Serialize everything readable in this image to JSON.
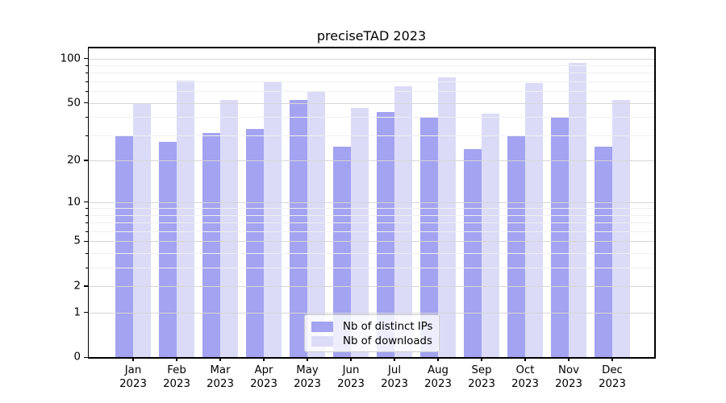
{
  "title": "preciseTAD 2023",
  "chart_data": {
    "type": "bar",
    "title": "preciseTAD 2023",
    "categories": [
      "Jan",
      "Feb",
      "Mar",
      "Apr",
      "May",
      "Jun",
      "Jul",
      "Aug",
      "Sep",
      "Oct",
      "Nov",
      "Dec"
    ],
    "x_tick_second_line": "2023",
    "series": [
      {
        "name": "Nb of distinct IPs",
        "color": "#a3a3f1",
        "values": [
          30,
          27,
          31,
          33,
          52,
          25,
          43,
          40,
          24,
          30,
          40,
          25
        ]
      },
      {
        "name": "Nb of downloads",
        "color": "#dbdbf8",
        "values": [
          49,
          71,
          52,
          69,
          59,
          46,
          65,
          75,
          42,
          68,
          94,
          52
        ]
      }
    ],
    "yscale": "log1p",
    "ylim": [
      0,
      118
    ],
    "y_major_ticks": [
      100,
      50,
      20,
      10,
      5,
      2,
      1,
      0
    ],
    "y_minor_ticks": [
      3,
      4,
      6,
      7,
      8,
      9,
      30,
      40,
      60,
      70,
      80,
      90
    ],
    "grid": "major-and-minor, drawn above bars",
    "legend_position": "lower center",
    "colors": {
      "major_grid": "#d6d6d6",
      "minor_grid": "#efefef",
      "spine": "#000000",
      "legend_border": "#cccccc"
    }
  }
}
